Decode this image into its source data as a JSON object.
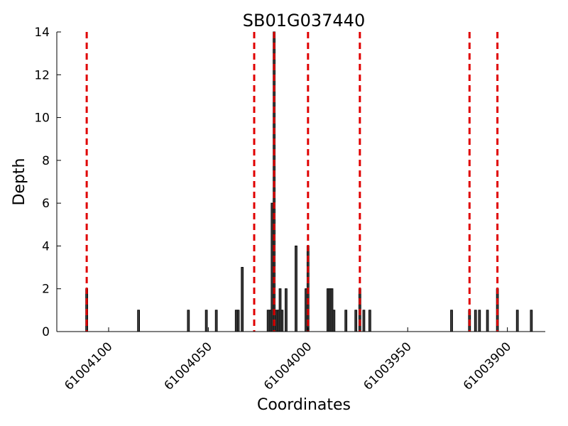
{
  "chart_data": {
    "type": "bar",
    "title": "SB01G037440",
    "xlabel": "Coordinates",
    "ylabel": "Depth",
    "xlim": [
      61004126,
      61003881
    ],
    "ylim": [
      0,
      14
    ],
    "x_reversed": true,
    "xticks": [
      61004100,
      61004050,
      61004000,
      61003950,
      61003900
    ],
    "xtick_labels": [
      "61004100",
      "61004050",
      "61004000",
      "61003950",
      "61003900"
    ],
    "yticks": [
      0,
      2,
      4,
      6,
      8,
      10,
      12,
      14
    ],
    "ytick_labels": [
      "0",
      "2",
      "4",
      "6",
      "8",
      "10",
      "12",
      "14"
    ],
    "grid": false,
    "bar_color": "#000000",
    "bar_fill": "#444444",
    "bars": [
      {
        "x": 61004111,
        "depth": 2
      },
      {
        "x": 61004085,
        "depth": 1
      },
      {
        "x": 61004060,
        "depth": 1
      },
      {
        "x": 61004051,
        "depth": 1
      },
      {
        "x": 61004046,
        "depth": 1
      },
      {
        "x": 61004036,
        "depth": 1
      },
      {
        "x": 61004035,
        "depth": 1
      },
      {
        "x": 61004033,
        "depth": 3
      },
      {
        "x": 61004020,
        "depth": 1
      },
      {
        "x": 61004019,
        "depth": 1
      },
      {
        "x": 61004018,
        "depth": 6
      },
      {
        "x": 61004017,
        "depth": 14
      },
      {
        "x": 61004016,
        "depth": 1
      },
      {
        "x": 61004015,
        "depth": 1
      },
      {
        "x": 61004014,
        "depth": 2
      },
      {
        "x": 61004013,
        "depth": 1
      },
      {
        "x": 61004011,
        "depth": 2
      },
      {
        "x": 61004006,
        "depth": 4
      },
      {
        "x": 61004001,
        "depth": 2
      },
      {
        "x": 61004000,
        "depth": 4
      },
      {
        "x": 61003990,
        "depth": 2
      },
      {
        "x": 61003989,
        "depth": 2
      },
      {
        "x": 61003988,
        "depth": 2
      },
      {
        "x": 61003987,
        "depth": 1
      },
      {
        "x": 61003981,
        "depth": 1
      },
      {
        "x": 61003976,
        "depth": 1
      },
      {
        "x": 61003974,
        "depth": 2
      },
      {
        "x": 61003972,
        "depth": 1
      },
      {
        "x": 61003969,
        "depth": 1
      },
      {
        "x": 61003928,
        "depth": 1
      },
      {
        "x": 61003919,
        "depth": 1
      },
      {
        "x": 61003916,
        "depth": 1
      },
      {
        "x": 61003914,
        "depth": 1
      },
      {
        "x": 61003910,
        "depth": 1
      },
      {
        "x": 61003905,
        "depth": 2
      },
      {
        "x": 61003895,
        "depth": 1
      },
      {
        "x": 61003888,
        "depth": 1
      }
    ],
    "vlines": {
      "color": "#e00000",
      "style": "dashed",
      "x": [
        61004111,
        61004027,
        61004017,
        61004000,
        61003974,
        61003919,
        61003905
      ]
    }
  }
}
